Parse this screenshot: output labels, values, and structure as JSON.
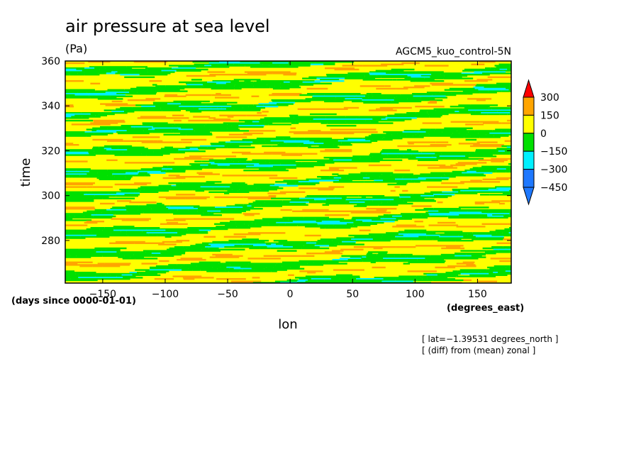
{
  "chart_data": {
    "type": "heatmap",
    "title": "air pressure at sea level",
    "units": "(Pa)",
    "run_label": "AGCM5_kuo_control-5N",
    "xlabel": "lon",
    "x_units": "(degrees_east)",
    "ylabel": "time",
    "y_units": "(days since 0000-01-01)",
    "xlim": [
      -180,
      177
    ],
    "ylim": [
      261,
      360
    ],
    "x_ticks": [
      -150,
      -100,
      -50,
      0,
      50,
      100,
      150
    ],
    "y_ticks": [
      280,
      300,
      320,
      340,
      360
    ],
    "x_tick_labels": [
      "−150",
      "−100",
      "−50",
      "0",
      "50",
      "100",
      "150"
    ],
    "y_tick_labels": [
      "280",
      "300",
      "320",
      "340",
      "360"
    ],
    "colorbar": {
      "levels": [
        -450,
        -300,
        -150,
        0,
        150,
        300
      ],
      "labels": [
        "300",
        "150",
        "0",
        "−150",
        "−300",
        "−450"
      ],
      "colors": [
        "#1e78ff",
        "#00f0ff",
        "#00e000",
        "#ffff00",
        "#ffa500",
        "#ff0000"
      ]
    },
    "annotations": [
      "[ lat=−1.39531 degrees_north ]",
      "[ (diff) from (mean) zonal ]"
    ],
    "grid": false,
    "legend_placement": "right"
  }
}
